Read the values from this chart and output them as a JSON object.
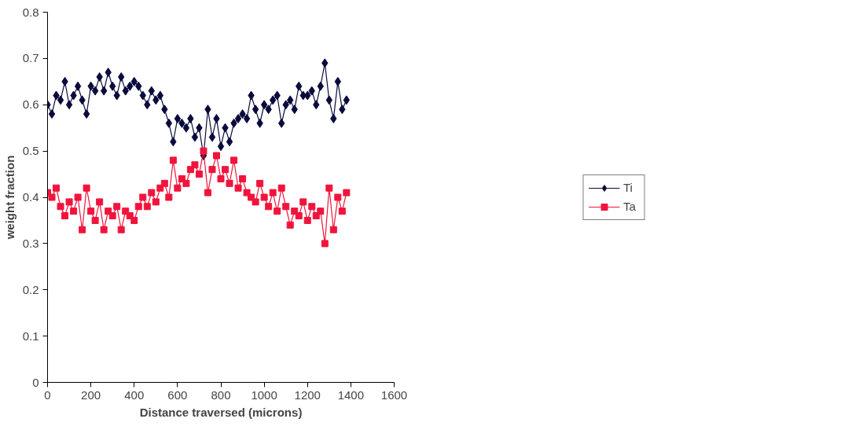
{
  "chart_data": {
    "type": "line",
    "xlabel": "Distance traversed (microns)",
    "ylabel": "weight fraction",
    "x": [
      0,
      20,
      40,
      60,
      80,
      100,
      120,
      140,
      160,
      180,
      200,
      220,
      240,
      260,
      280,
      300,
      320,
      340,
      360,
      380,
      400,
      420,
      440,
      460,
      480,
      500,
      520,
      540,
      560,
      580,
      600,
      620,
      640,
      660,
      680,
      700,
      720,
      740,
      760,
      780,
      800,
      820,
      840,
      860,
      880,
      900,
      920,
      940,
      960,
      980,
      1000,
      1020,
      1040,
      1060,
      1080,
      1100,
      1120,
      1140,
      1160,
      1180,
      1200,
      1220,
      1240,
      1260,
      1280,
      1300,
      1320,
      1340,
      1360,
      1380
    ],
    "series": [
      {
        "name": "Ti",
        "color": "#0a0a3c",
        "marker": "diamond",
        "values": [
          0.6,
          0.58,
          0.62,
          0.61,
          0.65,
          0.6,
          0.62,
          0.64,
          0.61,
          0.58,
          0.64,
          0.63,
          0.66,
          0.63,
          0.67,
          0.64,
          0.62,
          0.66,
          0.63,
          0.64,
          0.65,
          0.64,
          0.62,
          0.6,
          0.63,
          0.61,
          0.62,
          0.59,
          0.56,
          0.52,
          0.57,
          0.56,
          0.55,
          0.57,
          0.53,
          0.55,
          0.49,
          0.59,
          0.53,
          0.57,
          0.51,
          0.55,
          0.52,
          0.56,
          0.57,
          0.58,
          0.57,
          0.62,
          0.59,
          0.56,
          0.6,
          0.59,
          0.61,
          0.62,
          0.56,
          0.6,
          0.61,
          0.59,
          0.64,
          0.62,
          0.62,
          0.63,
          0.6,
          0.64,
          0.69,
          0.61,
          0.57,
          0.65,
          0.59,
          0.61
        ]
      },
      {
        "name": "Ta",
        "color": "#f0143c",
        "marker": "square",
        "values": [
          0.41,
          0.4,
          0.42,
          0.38,
          0.36,
          0.39,
          0.37,
          0.4,
          0.33,
          0.42,
          0.37,
          0.35,
          0.39,
          0.33,
          0.37,
          0.36,
          0.38,
          0.33,
          0.37,
          0.36,
          0.35,
          0.38,
          0.4,
          0.38,
          0.41,
          0.39,
          0.42,
          0.43,
          0.4,
          0.48,
          0.42,
          0.44,
          0.43,
          0.46,
          0.47,
          0.45,
          0.5,
          0.41,
          0.46,
          0.49,
          0.44,
          0.46,
          0.43,
          0.48,
          0.42,
          0.44,
          0.41,
          0.4,
          0.39,
          0.43,
          0.4,
          0.38,
          0.41,
          0.37,
          0.42,
          0.38,
          0.34,
          0.37,
          0.36,
          0.39,
          0.35,
          0.38,
          0.36,
          0.37,
          0.3,
          0.42,
          0.33,
          0.4,
          0.37,
          0.41
        ]
      }
    ],
    "xlim": [
      0,
      1600
    ],
    "xticks": [
      0,
      200,
      400,
      600,
      800,
      1000,
      1200,
      1400,
      1600
    ],
    "ylim": [
      0,
      0.8
    ],
    "yticks": [
      0,
      0.1,
      0.2,
      0.3,
      0.4,
      0.5,
      0.6,
      0.7,
      0.8
    ],
    "grid": false,
    "legend": "right"
  }
}
